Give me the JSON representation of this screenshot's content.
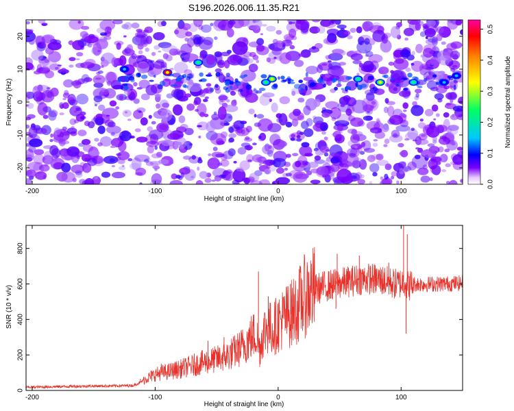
{
  "chart_data": [
    {
      "type": "heatmap",
      "title": "S196.2026.006.11.35.R21",
      "xlabel": "Height of straight line (km)",
      "ylabel": "Frequency (Hz)",
      "xlim": [
        -205,
        150
      ],
      "ylim": [
        -25,
        25
      ],
      "xticks": [
        -200,
        -100,
        0,
        100
      ],
      "yticks": [
        -20,
        -10,
        0,
        10,
        20
      ],
      "colorbar": {
        "label": "Normalized spectral amplitude",
        "range": [
          0.0,
          0.53
        ],
        "ticks": [
          0.0,
          0.1,
          0.2,
          0.3,
          0.4,
          0.5
        ],
        "colors": [
          "#ffffff",
          "#7b00ff",
          "#0000ff",
          "#00c8ff",
          "#00ff64",
          "#ffff00",
          "#ff8000",
          "#ff0000",
          "#ff00a0"
        ]
      },
      "band": {
        "freq_hz": 6,
        "start_km": -130,
        "note": "horizontal ridge of elevated amplitude near 5-9 Hz"
      },
      "hotspots": [
        {
          "x": -90,
          "y": 9,
          "value": 0.42
        },
        {
          "x": -5,
          "y": 7,
          "value": 0.34
        },
        {
          "x": 83,
          "y": 6,
          "value": 0.33
        },
        {
          "x": 65,
          "y": 7,
          "value": 0.28
        },
        {
          "x": -10,
          "y": 6,
          "value": 0.22
        },
        {
          "x": 110,
          "y": 6,
          "value": 0.22
        },
        {
          "x": -65,
          "y": 12,
          "value": 0.2
        },
        {
          "x": -125,
          "y": 10,
          "value": 0.14
        },
        {
          "x": 135,
          "y": 6,
          "value": 0.12
        },
        {
          "x": 145,
          "y": 8,
          "value": 0.14
        }
      ]
    },
    {
      "type": "line",
      "xlabel": "Height of straight line (km)",
      "ylabel": "SNR (10 * v/v)",
      "xlim": [
        -205,
        150
      ],
      "ylim": [
        0,
        930
      ],
      "xticks": [
        -200,
        -100,
        0,
        100
      ],
      "yticks": [
        0,
        200,
        400,
        600,
        800
      ],
      "color": "#e8312a",
      "series": [
        {
          "name": "SNR",
          "x": [
            -205,
            -190,
            -175,
            -160,
            -145,
            -130,
            -118,
            -112,
            -108,
            -100,
            -95,
            -90,
            -80,
            -70,
            -60,
            -50,
            -40,
            -30,
            -22,
            -18,
            -15,
            -12,
            -8,
            -5,
            0,
            5,
            10,
            15,
            20,
            25,
            30,
            40,
            48,
            55,
            65,
            75,
            85,
            95,
            100,
            103,
            105,
            110,
            120,
            130,
            140,
            150
          ],
          "y": [
            18,
            20,
            22,
            24,
            25,
            26,
            28,
            45,
            65,
            90,
            100,
            105,
            120,
            140,
            160,
            175,
            200,
            240,
            300,
            320,
            230,
            330,
            360,
            340,
            380,
            410,
            430,
            460,
            520,
            550,
            570,
            590,
            600,
            610,
            625,
            630,
            620,
            600,
            605,
            620,
            590,
            600,
            598,
            600,
            602,
            605
          ]
        }
      ],
      "spikes": [
        {
          "x": -112,
          "y": 65
        },
        {
          "x": -95,
          "y": 150
        },
        {
          "x": -57,
          "y": 280
        },
        {
          "x": -44,
          "y": 300
        },
        {
          "x": -30,
          "y": 340
        },
        {
          "x": -16,
          "y": 670
        },
        {
          "x": -8,
          "y": 530
        },
        {
          "x": 10,
          "y": 600
        },
        {
          "x": 48,
          "y": 770
        },
        {
          "x": 66,
          "y": 760
        },
        {
          "x": 90,
          "y": 720
        },
        {
          "x": 102,
          "y": 930
        },
        {
          "x": 105,
          "y": 880
        },
        {
          "x": 104,
          "y": 320
        },
        {
          "x": 47,
          "y": 460
        }
      ]
    }
  ]
}
